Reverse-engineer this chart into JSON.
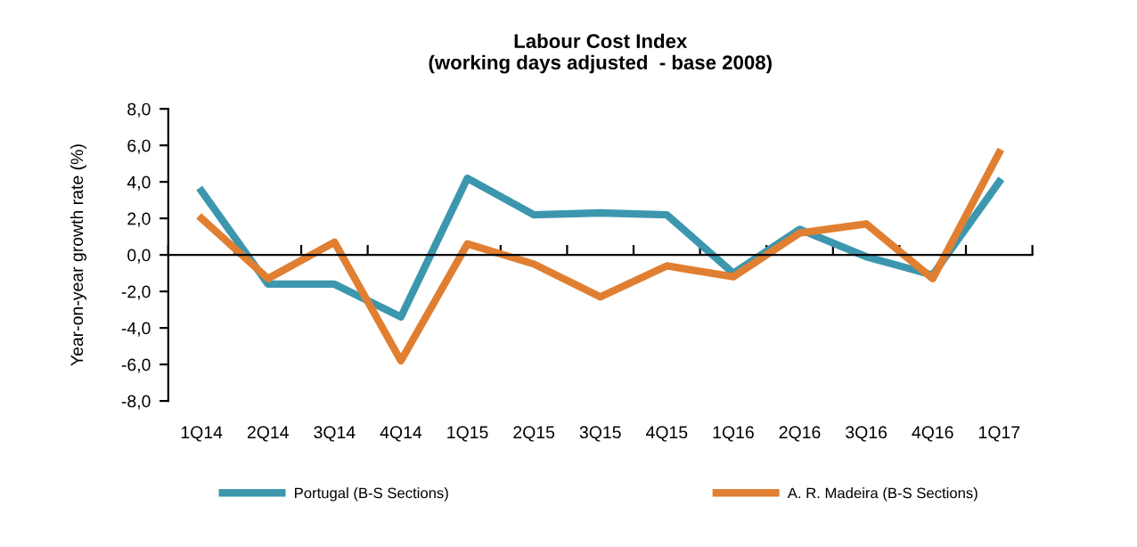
{
  "chart_data": {
    "type": "line",
    "title": "Labour Cost Index\n(working days adjusted  - base 2008)",
    "ylabel": "Year-on-year growth rate (%)",
    "categories": [
      "1Q14",
      "2Q14",
      "3Q14",
      "4Q14",
      "1Q15",
      "2Q15",
      "3Q15",
      "4Q15",
      "1Q16",
      "2Q16",
      "3Q16",
      "4Q16",
      "1Q17"
    ],
    "series": [
      {
        "name": "Portugal (B-S Sections)",
        "color": "#3c97ae",
        "values": [
          3.5,
          -1.6,
          -1.6,
          -3.4,
          4.2,
          2.2,
          2.3,
          2.2,
          -1.0,
          1.4,
          -0.1,
          -1.1,
          4.0
        ]
      },
      {
        "name": "A. R. Madeira (B-S Sections)",
        "color": "#e07f31",
        "values": [
          2.0,
          -1.3,
          0.7,
          -5.8,
          0.6,
          -0.5,
          -2.3,
          -0.6,
          -1.2,
          1.2,
          1.7,
          -1.3,
          5.6
        ]
      }
    ],
    "ylim": [
      -8,
      8
    ],
    "yticks": [
      {
        "value": -8,
        "label": "-8,0"
      },
      {
        "value": -6,
        "label": "-6,0"
      },
      {
        "value": -4,
        "label": "-4,0"
      },
      {
        "value": -2,
        "label": "-2,0"
      },
      {
        "value": 0,
        "label": "0,0"
      },
      {
        "value": 2,
        "label": "2,0"
      },
      {
        "value": 4,
        "label": "4,0"
      },
      {
        "value": 6,
        "label": "6,0"
      },
      {
        "value": 8,
        "label": "8,0"
      }
    ],
    "legend": "bottom",
    "marker": "none",
    "line_style": "solid"
  }
}
